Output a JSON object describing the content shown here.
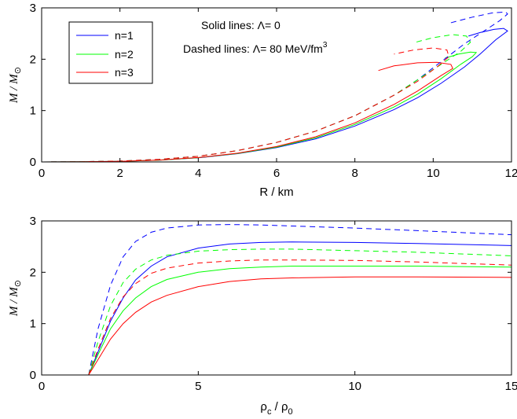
{
  "chart_data": [
    {
      "type": "line",
      "xlabel": "R / km",
      "ylabel": "M / M",
      "ylabel_sub": "⊙",
      "xlim": [
        0,
        12
      ],
      "ylim": [
        0,
        3
      ],
      "xticks": [
        "0",
        "2",
        "4",
        "6",
        "8",
        "10",
        "12"
      ],
      "yticks": [
        "0",
        "1",
        "2",
        "3"
      ],
      "grid": false,
      "legend": {
        "placement": "top-left",
        "entries": [
          {
            "label": "n=1",
            "color": "#0000ff"
          },
          {
            "label": "n=2",
            "color": "#00ff00"
          },
          {
            "label": "n=3",
            "color": "#ff0000"
          }
        ]
      },
      "annotations": [
        {
          "text": "Solid lines: Λ= 0"
        },
        {
          "text": "Dashed lines: Λ= 80 MeV/fm",
          "superscript": "3"
        }
      ],
      "series": [
        {
          "name": "n=1",
          "color": "#0000ff",
          "dash": false,
          "x": [
            0,
            1,
            2,
            3,
            4,
            5,
            6,
            7,
            8,
            9,
            9.6,
            10.2,
            10.8,
            11.2,
            11.6,
            11.9,
            11.8,
            11.55,
            11.2,
            10.9
          ],
          "y": [
            0,
            0.003,
            0.012,
            0.035,
            0.08,
            0.16,
            0.28,
            0.45,
            0.7,
            1.02,
            1.25,
            1.53,
            1.85,
            2.1,
            2.38,
            2.55,
            2.6,
            2.58,
            2.52,
            2.45
          ]
        },
        {
          "name": "n=2",
          "color": "#00ff00",
          "dash": false,
          "x": [
            0,
            1,
            2,
            3,
            4,
            5,
            6,
            7,
            8,
            9,
            9.6,
            10.2,
            10.7,
            11.0,
            11.1,
            10.95,
            10.65,
            10.3
          ],
          "y": [
            0,
            0.003,
            0.012,
            0.035,
            0.082,
            0.165,
            0.29,
            0.47,
            0.73,
            1.07,
            1.32,
            1.62,
            1.9,
            2.05,
            2.13,
            2.14,
            2.1,
            2.02
          ]
        },
        {
          "name": "n=3",
          "color": "#ff0000",
          "dash": false,
          "x": [
            0,
            1,
            2,
            3,
            4,
            5,
            6,
            7,
            8,
            9,
            9.6,
            10.2,
            10.5,
            10.45,
            10.1,
            9.6,
            9.0,
            8.6
          ],
          "y": [
            0,
            0.003,
            0.012,
            0.036,
            0.085,
            0.17,
            0.3,
            0.49,
            0.76,
            1.12,
            1.38,
            1.68,
            1.82,
            1.9,
            1.94,
            1.93,
            1.87,
            1.78
          ]
        },
        {
          "name": "n=1",
          "color": "#0000ff",
          "dash": true,
          "x": [
            0,
            1,
            2,
            3,
            4,
            5,
            6,
            7,
            8,
            9,
            9.6,
            10.2,
            10.8,
            11.3,
            11.7,
            11.9,
            11.85,
            11.5,
            11.0,
            10.4
          ],
          "y": [
            0,
            0.004,
            0.017,
            0.05,
            0.11,
            0.22,
            0.38,
            0.6,
            0.9,
            1.3,
            1.6,
            1.95,
            2.3,
            2.55,
            2.75,
            2.88,
            2.92,
            2.9,
            2.82,
            2.7
          ]
        },
        {
          "name": "n=2",
          "color": "#00ff00",
          "dash": true,
          "x": [
            0,
            1,
            2,
            3,
            4,
            5,
            6,
            7,
            8,
            9,
            9.6,
            10.2,
            10.7,
            10.95,
            10.85,
            10.5,
            10.0,
            9.5
          ],
          "y": [
            0,
            0.004,
            0.017,
            0.05,
            0.11,
            0.22,
            0.38,
            0.6,
            0.9,
            1.3,
            1.6,
            1.9,
            2.15,
            2.33,
            2.45,
            2.48,
            2.42,
            2.32
          ]
        },
        {
          "name": "n=3",
          "color": "#ff0000",
          "dash": true,
          "x": [
            0,
            1,
            2,
            3,
            4,
            5,
            6,
            7,
            8,
            9,
            9.6,
            10.1,
            10.4,
            10.35,
            10.0,
            9.5,
            9.0
          ],
          "y": [
            0,
            0.004,
            0.017,
            0.05,
            0.11,
            0.22,
            0.38,
            0.6,
            0.9,
            1.3,
            1.57,
            1.85,
            2.05,
            2.18,
            2.22,
            2.18,
            2.1
          ]
        }
      ]
    },
    {
      "type": "line",
      "xlabel": "ρ",
      "xlabel_sub1": "c",
      "xlabel_mid": " / ρ",
      "xlabel_sub2": "0",
      "ylabel": "M / M",
      "ylabel_sub": "⊙",
      "xlim": [
        0,
        15
      ],
      "ylim": [
        0,
        3
      ],
      "xticks": [
        "0",
        "5",
        "10",
        "15"
      ],
      "yticks": [
        "0",
        "1",
        "2",
        "3"
      ],
      "grid": false,
      "series": [
        {
          "name": "n=1",
          "color": "#0000ff",
          "dash": false,
          "x": [
            1.5,
            1.8,
            2.2,
            2.6,
            3.0,
            3.5,
            4.0,
            5.0,
            6.0,
            7.0,
            8.0,
            10.0,
            12.0,
            15.0
          ],
          "y": [
            0,
            0.45,
            1.05,
            1.5,
            1.85,
            2.12,
            2.3,
            2.47,
            2.55,
            2.58,
            2.59,
            2.58,
            2.56,
            2.52
          ]
        },
        {
          "name": "n=2",
          "color": "#00ff00",
          "dash": false,
          "x": [
            1.5,
            1.8,
            2.2,
            2.6,
            3.0,
            3.5,
            4.0,
            5.0,
            6.0,
            7.0,
            8.0,
            10.0,
            12.0,
            15.0
          ],
          "y": [
            0,
            0.4,
            0.9,
            1.25,
            1.5,
            1.72,
            1.86,
            2.0,
            2.07,
            2.1,
            2.12,
            2.12,
            2.12,
            2.1
          ]
        },
        {
          "name": "n=3",
          "color": "#ff0000",
          "dash": false,
          "x": [
            1.5,
            1.8,
            2.2,
            2.6,
            3.0,
            3.5,
            4.0,
            5.0,
            6.0,
            7.0,
            8.0,
            10.0,
            12.0,
            15.0
          ],
          "y": [
            0,
            0.3,
            0.7,
            1.0,
            1.22,
            1.42,
            1.55,
            1.72,
            1.82,
            1.87,
            1.89,
            1.91,
            1.91,
            1.9
          ]
        },
        {
          "name": "n=1",
          "color": "#0000ff",
          "dash": true,
          "x": [
            1.5,
            1.8,
            2.2,
            2.6,
            3.0,
            3.5,
            4.0,
            5.0,
            6.0,
            7.0,
            8.0,
            10.0,
            12.0,
            15.0
          ],
          "y": [
            0,
            0.9,
            1.75,
            2.3,
            2.6,
            2.78,
            2.86,
            2.92,
            2.93,
            2.92,
            2.9,
            2.86,
            2.81,
            2.73
          ]
        },
        {
          "name": "n=2",
          "color": "#00ff00",
          "dash": true,
          "x": [
            1.5,
            1.8,
            2.2,
            2.6,
            3.0,
            3.5,
            4.0,
            5.0,
            6.0,
            7.0,
            8.0,
            10.0,
            12.0,
            15.0
          ],
          "y": [
            0,
            0.65,
            1.35,
            1.8,
            2.06,
            2.24,
            2.33,
            2.41,
            2.44,
            2.45,
            2.45,
            2.42,
            2.39,
            2.32
          ]
        },
        {
          "name": "n=3",
          "color": "#ff0000",
          "dash": true,
          "x": [
            1.5,
            1.8,
            2.2,
            2.6,
            3.0,
            3.5,
            4.0,
            5.0,
            6.0,
            7.0,
            8.0,
            10.0,
            12.0,
            15.0
          ],
          "y": [
            0,
            0.5,
            1.1,
            1.52,
            1.78,
            1.98,
            2.08,
            2.18,
            2.22,
            2.24,
            2.24,
            2.23,
            2.2,
            2.14
          ]
        }
      ]
    }
  ]
}
